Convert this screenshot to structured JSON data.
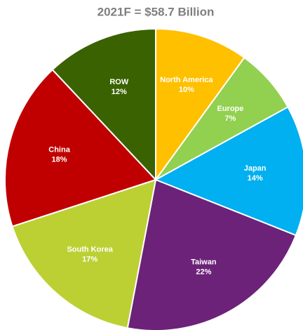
{
  "chart_data": {
    "type": "pie",
    "title": "2021F = $58.7 Billion",
    "categories": [
      "North America",
      "Europe",
      "Japan",
      "Taiwan",
      "South Korea",
      "China",
      "ROW"
    ],
    "values": [
      10,
      7,
      14,
      22,
      17,
      18,
      12
    ],
    "value_labels": [
      "10%",
      "7%",
      "14%",
      "22%",
      "17%",
      "18%",
      "12%"
    ],
    "colors": [
      "#FFC000",
      "#92D050",
      "#00B0F0",
      "#6C2279",
      "#BCD034",
      "#C00000",
      "#3A6200"
    ]
  }
}
